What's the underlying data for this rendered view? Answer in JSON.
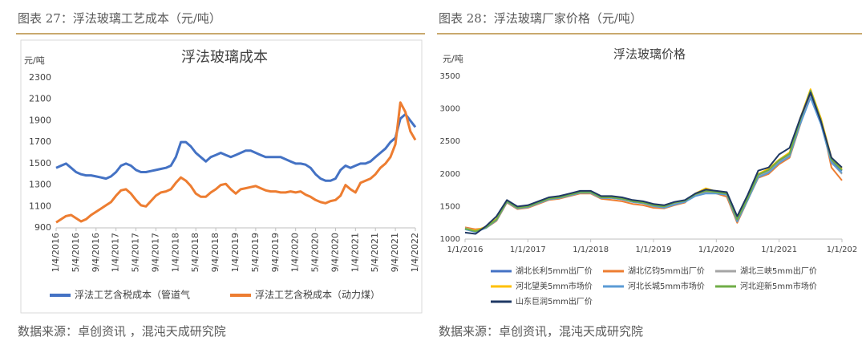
{
  "chart_data": [
    {
      "type": "line",
      "caption": "图表 27：浮法玻璃工艺成本（元/吨）",
      "title": "浮法玻璃成本",
      "ylabel": "元/吨",
      "source": "数据来源：卓创资讯 ，混沌天成研究院",
      "ylim": [
        900,
        2300
      ],
      "yticks": [
        900,
        1100,
        1300,
        1500,
        1700,
        1900,
        2100,
        2300
      ],
      "grid": false,
      "legend": "bottom",
      "categories": [
        "1/4/2016",
        null,
        null,
        null,
        "5/4/2016",
        null,
        null,
        null,
        "9/4/2016",
        null,
        null,
        null,
        "1/4/2017",
        null,
        null,
        null,
        "5/4/2017",
        null,
        null,
        null,
        "9/4/2017",
        null,
        null,
        null,
        "1/4/2018",
        null,
        null,
        null,
        "5/4/2018",
        null,
        null,
        null,
        "9/4/2018",
        null,
        null,
        null,
        "1/4/2019",
        null,
        null,
        null,
        "5/4/2019",
        null,
        null,
        null,
        "9/4/2019",
        null,
        null,
        null,
        "1/4/2020",
        null,
        null,
        null,
        "5/4/2020",
        null,
        null,
        null,
        "9/4/2020",
        null,
        null,
        null,
        "1/4/2021",
        null,
        null,
        null,
        "5/4/2021",
        null,
        null,
        null,
        "9/4/2021",
        null,
        null,
        null,
        "1/4/2022"
      ],
      "series": [
        {
          "name": "浮法工艺含税成本（管道气",
          "color": "#4472c4",
          "values": [
            1460,
            1480,
            1500,
            1460,
            1420,
            1400,
            1390,
            1390,
            1380,
            1370,
            1360,
            1380,
            1420,
            1480,
            1500,
            1480,
            1440,
            1420,
            1420,
            1430,
            1440,
            1450,
            1460,
            1480,
            1560,
            1700,
            1700,
            1660,
            1600,
            1560,
            1520,
            1560,
            1580,
            1600,
            1580,
            1560,
            1580,
            1600,
            1620,
            1620,
            1600,
            1580,
            1560,
            1560,
            1560,
            1560,
            1540,
            1520,
            1500,
            1500,
            1490,
            1460,
            1400,
            1360,
            1340,
            1340,
            1360,
            1440,
            1480,
            1460,
            1480,
            1500,
            1500,
            1520,
            1560,
            1600,
            1640,
            1700,
            1740,
            1920,
            1960,
            1900,
            1840
          ]
        },
        {
          "name": "浮法工艺含税成本（动力煤）",
          "color": "#ed7d31",
          "values": [
            950,
            980,
            1010,
            1020,
            990,
            960,
            980,
            1020,
            1050,
            1080,
            1110,
            1140,
            1200,
            1250,
            1260,
            1220,
            1160,
            1110,
            1100,
            1150,
            1200,
            1230,
            1240,
            1260,
            1320,
            1370,
            1340,
            1290,
            1220,
            1190,
            1190,
            1230,
            1260,
            1300,
            1310,
            1260,
            1220,
            1260,
            1270,
            1280,
            1290,
            1270,
            1250,
            1240,
            1240,
            1230,
            1230,
            1240,
            1230,
            1240,
            1210,
            1190,
            1160,
            1140,
            1130,
            1150,
            1160,
            1200,
            1300,
            1260,
            1230,
            1320,
            1340,
            1360,
            1400,
            1460,
            1500,
            1560,
            1680,
            2070,
            1980,
            1800,
            1720
          ]
        }
      ]
    },
    {
      "type": "line",
      "caption": "图表 28：浮法玻璃厂家价格（元/吨）",
      "title": "浮法玻璃价格",
      "ylabel": "元/吨",
      "source": "数据来源：卓创资讯，混沌天成研究院",
      "ylim": [
        1000,
        3500
      ],
      "yticks": [
        1000,
        1500,
        2000,
        2500,
        3000,
        3500
      ],
      "grid": false,
      "legend": "bottom",
      "categories": [
        "1/1/2016",
        null,
        null,
        null,
        null,
        null,
        "1/1/2017",
        null,
        null,
        null,
        null,
        null,
        "1/1/2018",
        null,
        null,
        null,
        null,
        null,
        "1/1/2019",
        null,
        null,
        null,
        null,
        null,
        "1/1/2020",
        null,
        null,
        null,
        null,
        null,
        "1/1/2021",
        null,
        null,
        null,
        null,
        null,
        "1/1/202"
      ],
      "series": [
        {
          "name": "湖北长利5mm出厂价",
          "color": "#4472c4",
          "values": [
            1150,
            1120,
            1180,
            1300,
            1580,
            1480,
            1500,
            1560,
            1620,
            1640,
            1680,
            1720,
            1720,
            1640,
            1640,
            1620,
            1580,
            1560,
            1520,
            1500,
            1550,
            1580,
            1680,
            1720,
            1720,
            1700,
            1300,
            1620,
            1980,
            2050,
            2200,
            2300,
            2800,
            3200,
            2800,
            2200,
            2050
          ]
        },
        {
          "name": "湖北亿钧5mm出厂价",
          "color": "#ed7d31",
          "values": [
            1180,
            1150,
            1170,
            1280,
            1560,
            1460,
            1480,
            1540,
            1600,
            1620,
            1660,
            1700,
            1700,
            1620,
            1600,
            1580,
            1540,
            1520,
            1480,
            1470,
            1520,
            1560,
            1700,
            1750,
            1700,
            1650,
            1250,
            1600,
            1940,
            2000,
            2150,
            2250,
            2750,
            3250,
            2850,
            2100,
            1900
          ]
        },
        {
          "name": "湖北三峡5mm出厂价",
          "color": "#a5a5a5",
          "values": [
            1170,
            1130,
            1190,
            1290,
            1570,
            1470,
            1490,
            1550,
            1610,
            1630,
            1670,
            1710,
            1710,
            1630,
            1630,
            1610,
            1570,
            1550,
            1500,
            1490,
            1540,
            1570,
            1670,
            1710,
            1710,
            1690,
            1280,
            1610,
            1960,
            2040,
            2180,
            2280,
            2780,
            3180,
            2780,
            2180,
            2000
          ]
        },
        {
          "name": "河北望美5mm市场价",
          "color": "#ffc000",
          "values": [
            1160,
            1130,
            1190,
            1310,
            1590,
            1490,
            1510,
            1570,
            1630,
            1650,
            1690,
            1730,
            1730,
            1650,
            1650,
            1630,
            1590,
            1570,
            1530,
            1510,
            1560,
            1590,
            1700,
            1780,
            1730,
            1710,
            1320,
            1640,
            2000,
            2080,
            2220,
            2330,
            2850,
            3300,
            2850,
            2250,
            2080
          ]
        },
        {
          "name": "河北长城5mm市场价",
          "color": "#5b9bd5",
          "values": [
            1150,
            1110,
            1170,
            1290,
            1570,
            1470,
            1490,
            1550,
            1610,
            1630,
            1670,
            1710,
            1710,
            1630,
            1630,
            1610,
            1570,
            1550,
            1510,
            1480,
            1530,
            1570,
            1660,
            1700,
            1700,
            1680,
            1270,
            1600,
            1950,
            2020,
            2170,
            2270,
            2760,
            3170,
            2760,
            2170,
            2020
          ]
        },
        {
          "name": "河北迎新5mm市场价",
          "color": "#70ad47",
          "values": [
            1160,
            1120,
            1180,
            1300,
            1580,
            1480,
            1500,
            1560,
            1620,
            1640,
            1680,
            1720,
            1720,
            1640,
            1640,
            1620,
            1580,
            1560,
            1520,
            1500,
            1560,
            1590,
            1690,
            1740,
            1720,
            1700,
            1300,
            1630,
            1990,
            2060,
            2210,
            2310,
            2820,
            3280,
            2820,
            2220,
            2060
          ]
        },
        {
          "name": "山东巨润5mm出厂价",
          "color": "#1f3864",
          "values": [
            1100,
            1080,
            1200,
            1350,
            1600,
            1500,
            1520,
            1580,
            1640,
            1660,
            1700,
            1740,
            1740,
            1660,
            1660,
            1640,
            1600,
            1580,
            1540,
            1520,
            1570,
            1600,
            1700,
            1760,
            1740,
            1720,
            1350,
            1680,
            2050,
            2100,
            2300,
            2400,
            2850,
            3250,
            2800,
            2250,
            2100
          ]
        }
      ]
    }
  ]
}
